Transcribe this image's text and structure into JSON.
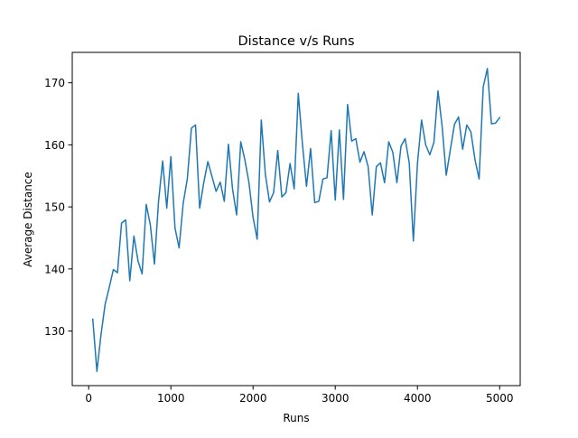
{
  "chart_data": {
    "type": "line",
    "title": "Distance v/s Runs",
    "xlabel": "Runs",
    "ylabel": "Average Distance",
    "xlim": [
      -200,
      5250
    ],
    "ylim": [
      121.2,
      174.9
    ],
    "xticks": [
      0,
      1000,
      2000,
      3000,
      4000,
      5000
    ],
    "yticks": [
      130,
      140,
      150,
      160,
      170
    ],
    "grid": false,
    "series": [
      {
        "color": "#1f77b4",
        "x": [
          50,
          100,
          150,
          200,
          250,
          300,
          350,
          400,
          450,
          500,
          550,
          600,
          650,
          700,
          750,
          800,
          850,
          900,
          950,
          1000,
          1050,
          1100,
          1150,
          1200,
          1250,
          1300,
          1350,
          1400,
          1450,
          1500,
          1550,
          1600,
          1650,
          1700,
          1750,
          1800,
          1850,
          1900,
          1950,
          2000,
          2050,
          2100,
          2150,
          2200,
          2250,
          2300,
          2350,
          2400,
          2450,
          2500,
          2550,
          2600,
          2650,
          2700,
          2750,
          2800,
          2850,
          2900,
          2950,
          3000,
          3050,
          3100,
          3150,
          3200,
          3250,
          3300,
          3350,
          3400,
          3450,
          3500,
          3550,
          3600,
          3650,
          3700,
          3750,
          3800,
          3850,
          3900,
          3950,
          4000,
          4050,
          4100,
          4150,
          4200,
          4250,
          4300,
          4350,
          4400,
          4450,
          4500,
          4550,
          4600,
          4650,
          4700,
          4750,
          4800,
          4850,
          4900,
          4950,
          5000
        ],
        "y": [
          131.9,
          123.5,
          129.4,
          134.3,
          137.0,
          139.9,
          139.4,
          147.4,
          147.9,
          138.1,
          145.3,
          141.3,
          139.2,
          150.4,
          147.1,
          140.8,
          150.9,
          157.4,
          149.8,
          158.1,
          146.6,
          143.4,
          150.6,
          154.5,
          162.7,
          163.2,
          149.8,
          153.9,
          157.3,
          154.9,
          152.5,
          154.0,
          150.9,
          160.1,
          152.9,
          148.7,
          160.5,
          157.6,
          153.9,
          148.3,
          144.8,
          164.0,
          155.2,
          150.8,
          152.3,
          159.1,
          151.6,
          152.3,
          157.0,
          152.9,
          168.3,
          160.2,
          153.3,
          159.4,
          150.7,
          150.9,
          154.5,
          154.7,
          162.3,
          151.1,
          162.4,
          151.2,
          166.5,
          160.6,
          161.0,
          157.2,
          158.9,
          156.5,
          148.7,
          156.5,
          157.1,
          153.9,
          160.5,
          158.8,
          153.9,
          159.8,
          161.0,
          157.1,
          144.5,
          157.0,
          164.0,
          160.0,
          158.4,
          160.4,
          168.7,
          163.0,
          155.1,
          159.2,
          163.3,
          164.5,
          159.3,
          163.2,
          162.1,
          157.6,
          154.5,
          169.3,
          172.3,
          163.4,
          163.5,
          164.4
        ]
      }
    ]
  }
}
